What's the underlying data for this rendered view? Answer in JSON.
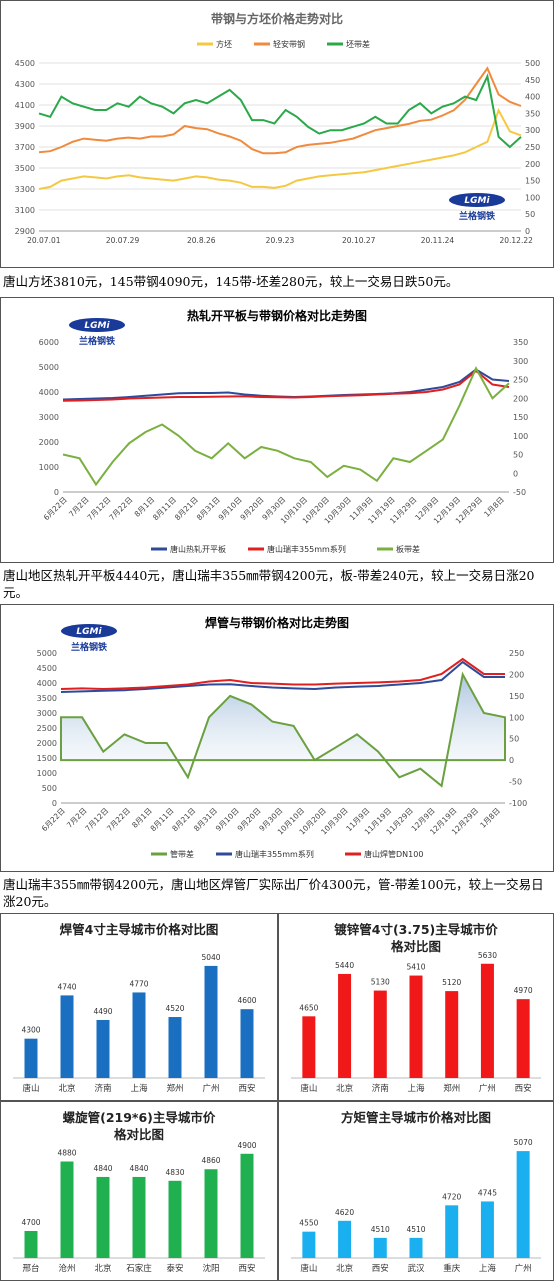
{
  "chart1": {
    "title": "带钢与方坯价格走势对比",
    "legend": [
      "方坯",
      "轻安带钢",
      "坯带差"
    ],
    "colors": [
      "#f5c842",
      "#f08a3c",
      "#2aa84a"
    ],
    "y_left_ticks": [
      "4500",
      "4300",
      "4100",
      "3900",
      "3700",
      "3500",
      "3300",
      "3100",
      "2900"
    ],
    "y_right_ticks": [
      "500",
      "450",
      "400",
      "350",
      "300",
      "250",
      "200",
      "150",
      "100",
      "50",
      "0"
    ],
    "x_ticks": [
      "20.07.01",
      "20.07.29",
      "20.8.26",
      "20.9.23",
      "20.10.27",
      "20.11.24",
      "20.12.22"
    ],
    "caption": "唐山方坯3810元，145带钢4090元，145带-坯差280元，较上一交易日跌50元。"
  },
  "chart2": {
    "title": "热轧开平板与带钢价格对比走势图",
    "legend": [
      "唐山热轧开平板",
      "唐山瑞丰355mm系列",
      "板带差"
    ],
    "colors": [
      "#2f4a9a",
      "#e02020",
      "#7ab040"
    ],
    "y_left_ticks": [
      "6000",
      "5000",
      "4000",
      "3000",
      "2000",
      "1000",
      "0"
    ],
    "y_right_ticks": [
      "350",
      "300",
      "250",
      "200",
      "150",
      "100",
      "50",
      "0",
      "-50"
    ],
    "x_ticks": [
      "6月22日",
      "7月2日",
      "7月12日",
      "7月22日",
      "8月1日",
      "8月11日",
      "8月21日",
      "8月31日",
      "9月10日",
      "9月20日",
      "9月30日",
      "10月10日",
      "10月20日",
      "10月30日",
      "11月9日",
      "11月19日",
      "11月29日",
      "12月9日",
      "12月19日",
      "12月29日",
      "1月8日"
    ],
    "caption": "唐山地区热轧开平板4440元，唐山瑞丰355㎜带钢4200元，板-带差240元，较上一交易日涨20元。"
  },
  "chart3": {
    "title": "焊管与带钢价格对比走势图",
    "legend": [
      "管带差",
      "唐山瑞丰355mm系列",
      "唐山焊管DN100"
    ],
    "colors": [
      "#6aa040",
      "#2f4a9a",
      "#e02020"
    ],
    "y_left_ticks": [
      "5000",
      "4500",
      "4000",
      "3500",
      "3000",
      "2500",
      "2000",
      "1500",
      "1000",
      "500",
      "0"
    ],
    "y_right_ticks": [
      "250",
      "200",
      "150",
      "100",
      "50",
      "0",
      "-50",
      "-100"
    ],
    "x_ticks": [
      "6月22日",
      "7月2日",
      "7月12日",
      "7月22日",
      "8月1日",
      "8月11日",
      "8月21日",
      "8月31日",
      "9月10日",
      "9月20日",
      "9月30日",
      "10月10日",
      "10月20日",
      "10月30日",
      "11月9日",
      "11月19日",
      "11月29日",
      "12月9日",
      "12月19日",
      "12月29日",
      "1月8日"
    ],
    "caption": "唐山瑞丰355㎜带钢4200元，唐山地区焊管厂实际出厂价4300元，管-带差100元，较上一交易日涨20元。"
  },
  "logo_text": "兰格钢铁",
  "logo_badge": "LGMi",
  "chart_data": [
    {
      "type": "line",
      "title": "带钢与方坯价格走势对比",
      "series": [
        {
          "name": "方坯",
          "values": [
            3300,
            3320,
            3380,
            3400,
            3420,
            3410,
            3400,
            3420,
            3430,
            3410,
            3400,
            3390,
            3380,
            3400,
            3420,
            3410,
            3390,
            3380,
            3360,
            3320,
            3320,
            3310,
            3330,
            3380,
            3400,
            3420,
            3430,
            3440,
            3450,
            3460,
            3480,
            3500,
            3520,
            3540,
            3560,
            3580,
            3600,
            3620,
            3650,
            3700,
            3750,
            4050,
            3850,
            3810
          ]
        },
        {
          "name": "轻安带钢",
          "values": [
            3650,
            3660,
            3700,
            3750,
            3780,
            3770,
            3760,
            3780,
            3790,
            3780,
            3800,
            3800,
            3820,
            3900,
            3880,
            3870,
            3830,
            3800,
            3760,
            3680,
            3640,
            3640,
            3650,
            3700,
            3720,
            3730,
            3740,
            3760,
            3780,
            3820,
            3860,
            3880,
            3900,
            3920,
            3950,
            3960,
            4000,
            4050,
            4150,
            4300,
            4450,
            4200,
            4130,
            4090
          ]
        },
        {
          "name": "坯带差",
          "values": [
            350,
            340,
            400,
            380,
            370,
            360,
            360,
            380,
            370,
            400,
            380,
            370,
            350,
            380,
            390,
            380,
            400,
            420,
            390,
            330,
            330,
            320,
            360,
            340,
            310,
            290,
            300,
            300,
            310,
            320,
            340,
            320,
            320,
            360,
            380,
            350,
            370,
            380,
            400,
            390,
            460,
            280,
            250,
            280
          ]
        }
      ],
      "x_ticks": [
        "20.07.01",
        "20.07.29",
        "20.8.26",
        "20.9.23",
        "20.10.27",
        "20.11.24",
        "20.12.22"
      ],
      "ylim": [
        2900,
        4500
      ],
      "y2lim": [
        0,
        500
      ]
    },
    {
      "type": "line",
      "title": "热轧开平板与带钢价格对比走势图",
      "series": [
        {
          "name": "唐山热轧开平板",
          "values": [
            3700,
            3720,
            3740,
            3760,
            3800,
            3850,
            3900,
            3950,
            3960,
            3960,
            3980,
            3900,
            3850,
            3820,
            3800,
            3820,
            3850,
            3880,
            3900,
            3920,
            3950,
            4000,
            4100,
            4200,
            4400,
            4900,
            4500,
            4440
          ]
        },
        {
          "name": "唐山瑞丰355mm系列",
          "values": [
            3650,
            3660,
            3680,
            3700,
            3740,
            3760,
            3780,
            3800,
            3800,
            3810,
            3820,
            3830,
            3800,
            3790,
            3780,
            3800,
            3830,
            3850,
            3870,
            3900,
            3930,
            3950,
            4000,
            4100,
            4300,
            4850,
            4300,
            4200
          ]
        },
        {
          "name": "板带差",
          "values": [
            50,
            40,
            -30,
            30,
            80,
            110,
            130,
            100,
            60,
            40,
            80,
            40,
            70,
            60,
            40,
            30,
            -10,
            20,
            10,
            -20,
            40,
            30,
            60,
            90,
            180,
            280,
            200,
            240
          ]
        }
      ],
      "x_ticks": [
        "6月22日",
        "7月2日",
        "7月12日",
        "7月22日",
        "8月1日",
        "8月11日",
        "8月21日",
        "8月31日",
        "9月10日",
        "9月20日",
        "9月30日",
        "10月10日",
        "10月20日",
        "10月30日",
        "11月9日",
        "11月19日",
        "11月29日",
        "12月9日",
        "12月19日",
        "12月29日",
        "1月8日"
      ],
      "ylim": [
        0,
        6000
      ],
      "y2lim": [
        -50,
        350
      ]
    },
    {
      "type": "area",
      "title": "焊管与带钢价格对比走势图",
      "series": [
        {
          "name": "唐山瑞丰355mm系列",
          "values": [
            3700,
            3720,
            3740,
            3760,
            3800,
            3850,
            3900,
            3950,
            3960,
            3900,
            3850,
            3820,
            3800,
            3850,
            3880,
            3900,
            3950,
            4000,
            4100,
            4700,
            4200,
            4200
          ]
        },
        {
          "name": "唐山焊管DN100",
          "values": [
            3800,
            3820,
            3800,
            3820,
            3850,
            3900,
            3950,
            4050,
            4100,
            4000,
            3980,
            3950,
            3950,
            3980,
            4000,
            4020,
            4050,
            4100,
            4300,
            4800,
            4300,
            4300
          ]
        },
        {
          "name": "管带差",
          "values": [
            100,
            100,
            20,
            60,
            40,
            40,
            -40,
            100,
            150,
            130,
            90,
            80,
            0,
            30,
            60,
            20,
            -40,
            -20,
            -60,
            200,
            110,
            100
          ]
        }
      ],
      "x_ticks": [
        "6月22日",
        "7月2日",
        "7月12日",
        "7月22日",
        "8月1日",
        "8月11日",
        "8月21日",
        "8月31日",
        "9月10日",
        "9月20日",
        "9月30日",
        "10月10日",
        "10月20日",
        "10月30日",
        "11月9日",
        "11月19日",
        "11月29日",
        "12月9日",
        "12月19日",
        "12月29日",
        "1月8日"
      ],
      "ylim": [
        0,
        5000
      ],
      "y2lim": [
        -100,
        250
      ]
    },
    {
      "type": "bar",
      "title": "焊管4寸主导城市价格对比图",
      "color": "#1a6fc0",
      "categories": [
        "唐山",
        "北京",
        "济南",
        "上海",
        "郑州",
        "广州",
        "西安"
      ],
      "values": [
        4300,
        4740,
        4490,
        4770,
        4520,
        5040,
        4600
      ],
      "ylim": [
        3900,
        5100
      ]
    },
    {
      "type": "bar",
      "title": "镀锌管4寸(3.75)主导城市价格对比图",
      "color": "#f01818",
      "categories": [
        "唐山",
        "北京",
        "济南",
        "上海",
        "郑州",
        "广州",
        "西安"
      ],
      "values": [
        4650,
        5440,
        5130,
        5410,
        5120,
        5630,
        4970
      ],
      "ylim": [
        3500,
        5700
      ]
    },
    {
      "type": "bar",
      "title": "螺旋管(219*6)主导城市价格对比图",
      "color": "#20b050",
      "categories": [
        "邢台",
        "沧州",
        "北京",
        "石家庄",
        "泰安",
        "沈阳",
        "西安"
      ],
      "values": [
        4700,
        4880,
        4840,
        4840,
        4830,
        4860,
        4900
      ],
      "ylim": [
        4630,
        4915
      ]
    },
    {
      "type": "bar",
      "title": "方矩管主导城市价格对比图",
      "color": "#1ab0f0",
      "categories": [
        "唐山",
        "北京",
        "西安",
        "武汉",
        "重庆",
        "上海",
        "广州"
      ],
      "values": [
        4550,
        4620,
        4510,
        4510,
        4720,
        4745,
        5070
      ],
      "ylim": [
        4380,
        5090
      ]
    }
  ]
}
